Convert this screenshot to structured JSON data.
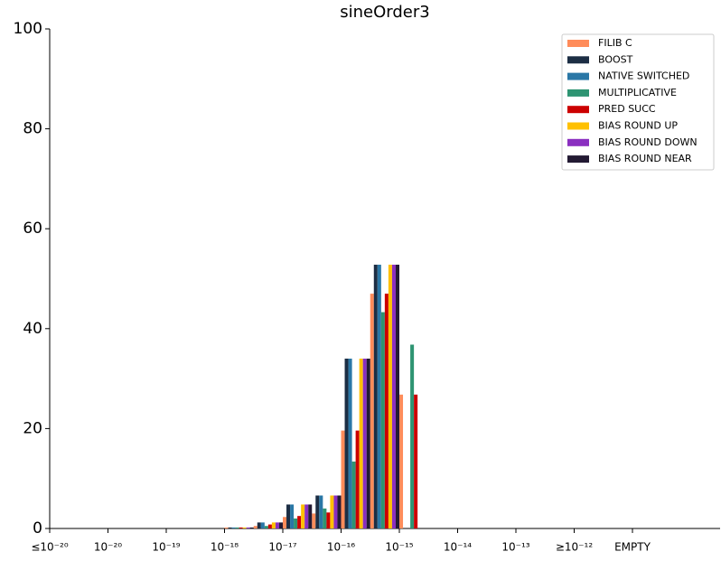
{
  "chart_data": {
    "type": "bar",
    "title": "sineOrder3",
    "categories": [
      "≤10⁻²⁰",
      null,
      "10⁻²⁰",
      null,
      "10⁻¹⁹",
      null,
      "10⁻¹⁸",
      null,
      "10⁻¹⁷",
      null,
      "10⁻¹⁶",
      null,
      "10⁻¹⁵",
      null,
      "10⁻¹⁴",
      null,
      "10⁻¹³",
      null,
      "≥10⁻¹²",
      null,
      "EMPTY",
      null
    ],
    "series": [
      {
        "name": "FILIB C",
        "color": "#ff8c5a",
        "values": [
          0,
          0,
          0,
          0,
          0,
          0,
          0.2,
          0.5,
          2.3,
          3.0,
          19.6,
          47,
          26.8,
          0,
          0,
          0,
          0,
          0,
          0,
          0,
          0,
          0
        ]
      },
      {
        "name": "BOOST",
        "color": "#1c2e44",
        "values": [
          0,
          0,
          0,
          0,
          0,
          0,
          0.2,
          1.2,
          4.8,
          6.6,
          34,
          52.8,
          0,
          0,
          0,
          0,
          0,
          0,
          0,
          0,
          0,
          0
        ]
      },
      {
        "name": "NATIVE SWITCHED",
        "color": "#2a77a6",
        "values": [
          0,
          0,
          0,
          0,
          0,
          0,
          0.2,
          1.2,
          4.8,
          6.6,
          34,
          52.8,
          0,
          0,
          0,
          0,
          0,
          0,
          0,
          0,
          0,
          0
        ]
      },
      {
        "name": "MULTIPLICATIVE",
        "color": "#2e9472",
        "values": [
          0,
          0,
          0,
          0,
          0,
          0,
          0.2,
          0.5,
          2.0,
          4.0,
          13.4,
          43.3,
          36.8,
          0,
          0,
          0,
          0,
          0,
          0,
          0,
          0,
          0
        ]
      },
      {
        "name": "PRED SUCC",
        "color": "#cc0000",
        "values": [
          0,
          0,
          0,
          0,
          0,
          0,
          0.2,
          0.8,
          2.5,
          3.2,
          19.6,
          47,
          26.8,
          0,
          0,
          0,
          0,
          0,
          0,
          0,
          0,
          0
        ]
      },
      {
        "name": "BIAS ROUND UP",
        "color": "#ffc000",
        "values": [
          0,
          0,
          0,
          0,
          0,
          0,
          0.2,
          1.2,
          4.8,
          6.6,
          34,
          52.8,
          0,
          0,
          0,
          0,
          0,
          0,
          0,
          0,
          0,
          0
        ]
      },
      {
        "name": "BIAS ROUND DOWN",
        "color": "#8a2fc0",
        "values": [
          0,
          0,
          0,
          0,
          0,
          0,
          0.2,
          1.2,
          4.8,
          6.6,
          34,
          52.8,
          0,
          0,
          0,
          0,
          0,
          0,
          0,
          0,
          0,
          0
        ]
      },
      {
        "name": "BIAS ROUND NEAR",
        "color": "#231a33",
        "values": [
          0,
          0,
          0,
          0,
          0,
          0,
          0.2,
          1.2,
          4.8,
          6.6,
          34,
          52.8,
          0,
          0,
          0,
          0,
          0,
          0,
          0,
          0,
          0,
          0
        ]
      }
    ],
    "ylim": [
      0,
      100
    ],
    "yticks": [
      0,
      20,
      40,
      60,
      80,
      100
    ],
    "grid": false,
    "legend": "upper right"
  }
}
